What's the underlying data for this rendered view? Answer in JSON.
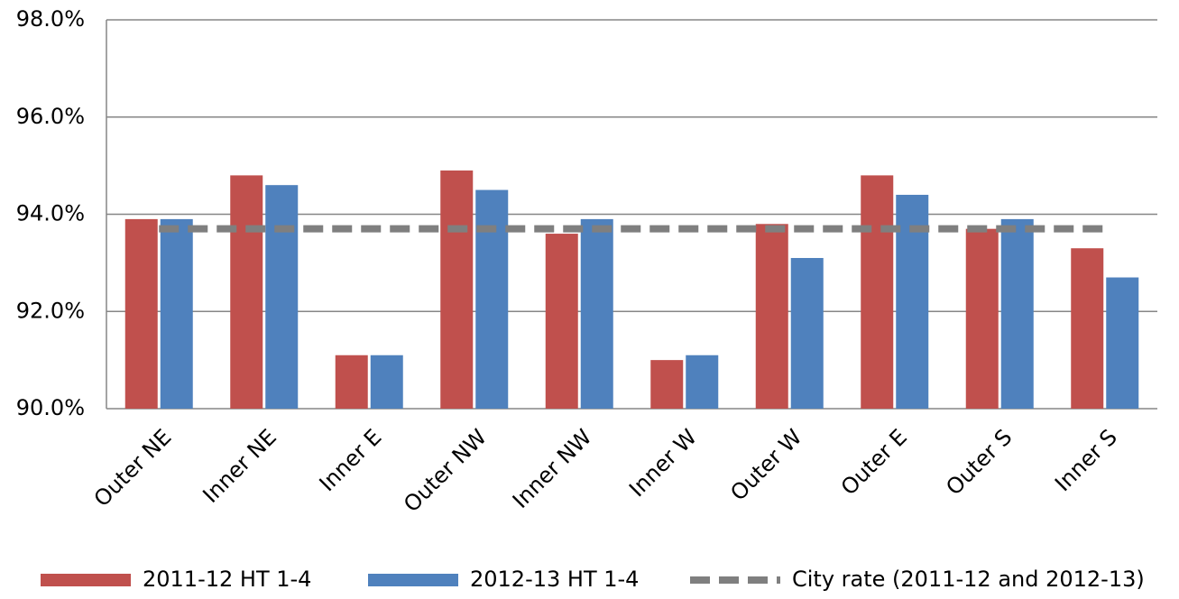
{
  "chart_data": {
    "type": "bar",
    "categories": [
      "Outer NE",
      "Inner NE",
      "Inner E",
      "Outer NW",
      "Inner NW",
      "Inner W",
      "Outer W",
      "Outer E",
      "Outer S",
      "Inner S"
    ],
    "series": [
      {
        "name": "2011-12 HT 1-4",
        "color": "#c0504d",
        "values": [
          93.9,
          94.8,
          91.1,
          94.9,
          93.6,
          91.0,
          93.8,
          94.8,
          93.7,
          93.3
        ]
      },
      {
        "name": "2012-13 HT 1-4",
        "color": "#4f81bd",
        "values": [
          93.9,
          94.6,
          91.1,
          94.5,
          93.9,
          91.1,
          93.1,
          94.4,
          93.9,
          92.7
        ]
      },
      {
        "name": "City rate (2011-12 and 2012-13)",
        "color": "#7f7f7f",
        "type": "line",
        "style": "dashed",
        "values": [
          93.7,
          93.7,
          93.7,
          93.7,
          93.7,
          93.7,
          93.7,
          93.7,
          93.7,
          93.7
        ]
      }
    ],
    "ylim": [
      90,
      98
    ],
    "yticks": [
      {
        "value": 90,
        "label": "90.0%"
      },
      {
        "value": 92,
        "label": "92.0%"
      },
      {
        "value": 94,
        "label": "94.0%"
      },
      {
        "value": 96,
        "label": "96.0%"
      },
      {
        "value": 98,
        "label": "98.0%"
      }
    ],
    "grid": true,
    "legend": "bottom"
  }
}
